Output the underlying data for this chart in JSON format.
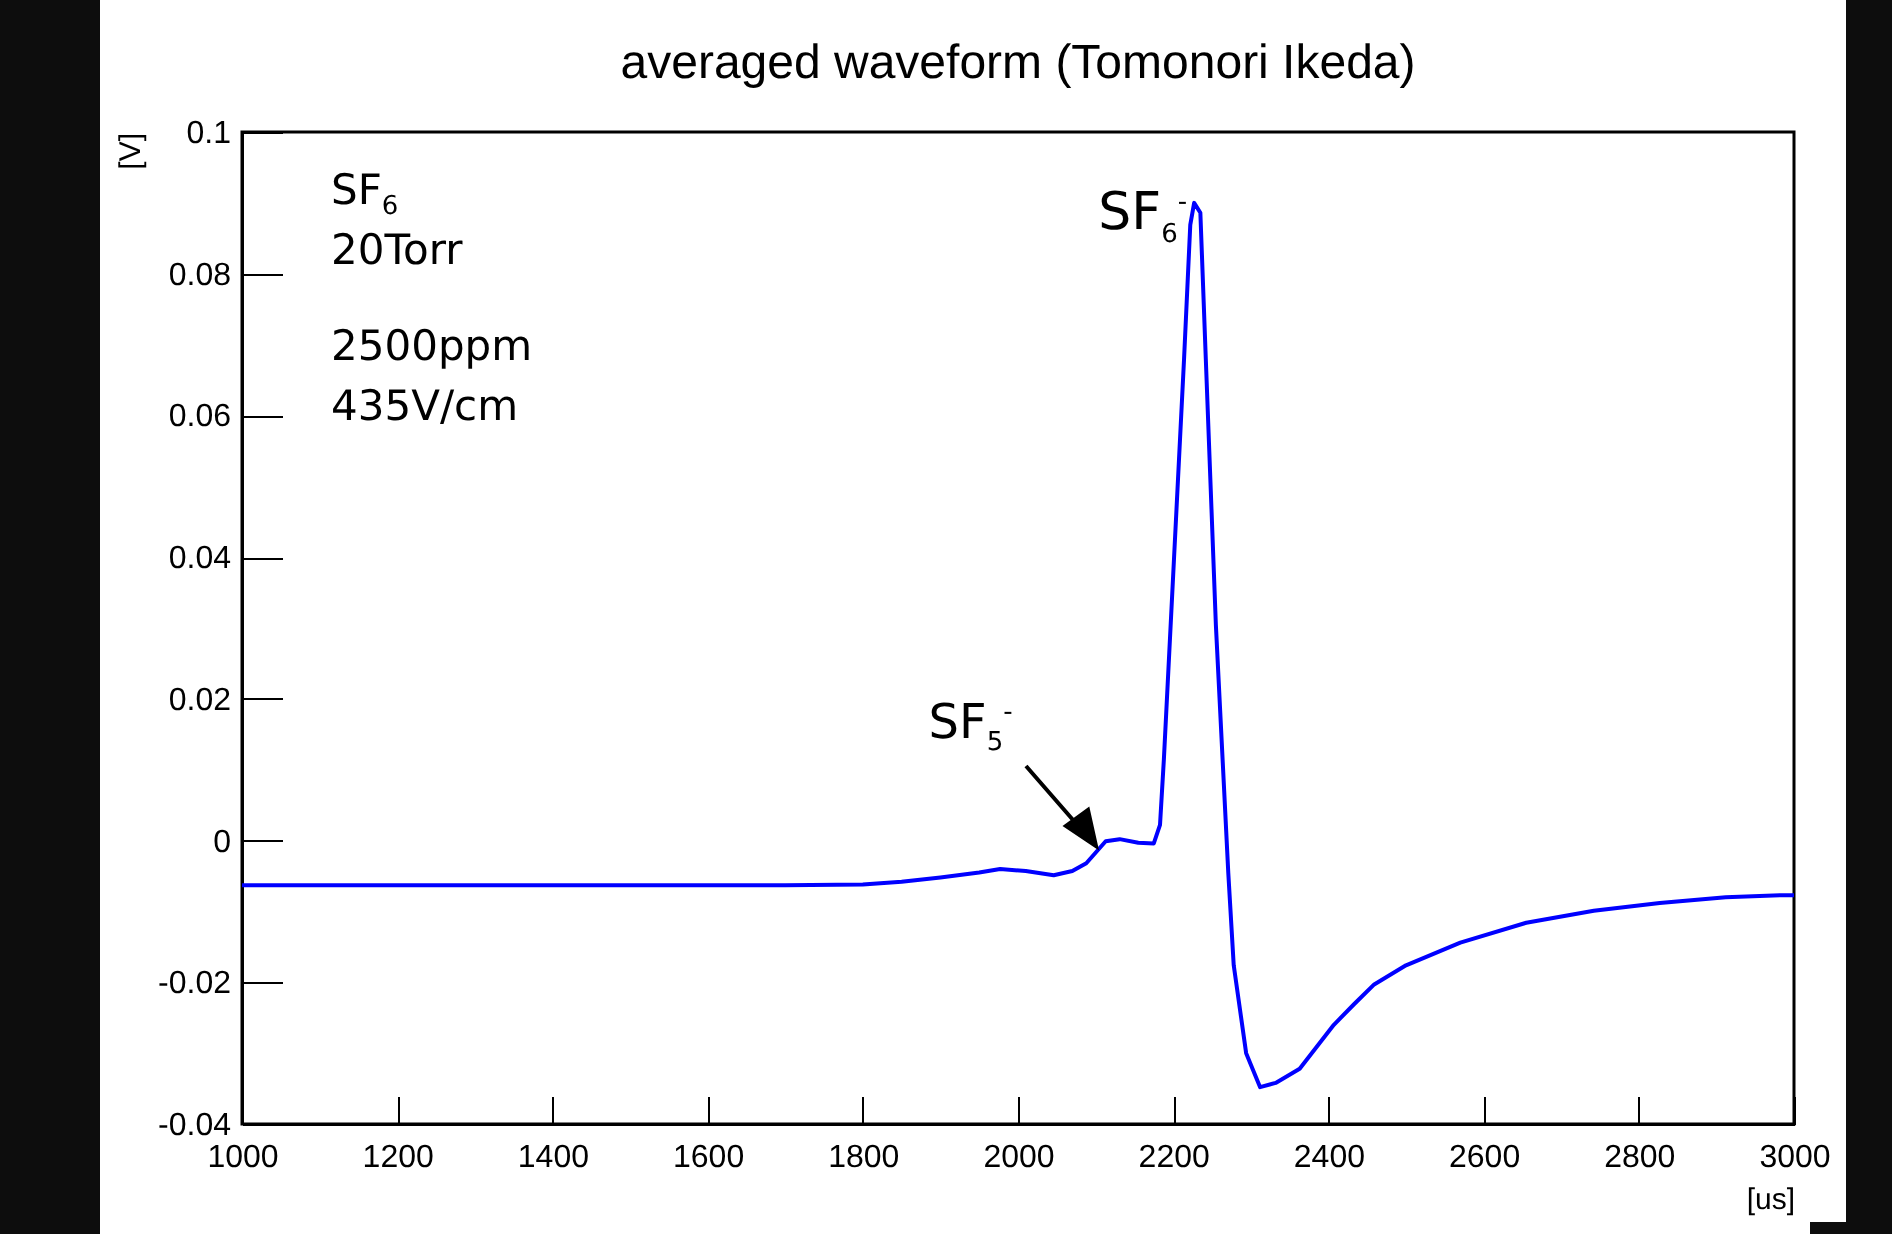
{
  "chart_data": {
    "type": "line",
    "title": "averaged waveform (Tomonori Ikeda)",
    "xlabel": "[us]",
    "ylabel": "[V]",
    "x": [
      1000,
      1200,
      1400,
      1600,
      1700,
      1800,
      1850,
      1900,
      1950,
      1977,
      2010,
      2046,
      2070,
      2088,
      2113,
      2131,
      2155,
      2175,
      2183,
      2188,
      2201,
      2214,
      2222,
      2227,
      2235,
      2242,
      2255,
      2271,
      2278,
      2294,
      2312,
      2332,
      2363,
      2407,
      2433,
      2459,
      2500,
      2570,
      2655,
      2742,
      2827,
      2912,
      2982,
      3000
    ],
    "series": [
      {
        "color": "#0000ff",
        "values": [
          -0.0063,
          -0.0063,
          -0.0063,
          -0.0063,
          -0.0063,
          -0.0062,
          -0.0058,
          -0.0052,
          -0.0045,
          -0.004,
          -0.0043,
          -0.0049,
          -0.0043,
          -0.0032,
          -0.0001,
          0.0002,
          -0.0003,
          -0.0004,
          0.0022,
          0.0115,
          0.0397,
          0.068,
          0.0869,
          0.09,
          0.0886,
          0.068,
          0.0304,
          -0.0046,
          -0.0176,
          -0.03,
          -0.0348,
          -0.0342,
          -0.0322,
          -0.026,
          -0.0231,
          -0.0203,
          -0.0176,
          -0.0144,
          -0.0116,
          -0.0099,
          -0.0088,
          -0.008,
          -0.0077,
          -0.0077
        ]
      }
    ],
    "xlim": [
      1000,
      3000
    ],
    "xticks": [
      1000,
      1200,
      1400,
      1600,
      1800,
      2000,
      2200,
      2400,
      2600,
      2800,
      3000
    ],
    "ylim": [
      -0.04,
      0.1
    ],
    "yticks": [
      -0.04,
      -0.02,
      0,
      0.02,
      0.04,
      0.06,
      0.08,
      0.1
    ],
    "grid": false,
    "marker": "none",
    "line_style": "solid",
    "annotations": [
      "SF$_{6}$",
      "20Torr",
      "2500ppm",
      "435V/cm",
      {
        "text": "SF$_{6}$$^{-}$",
        "x": 2227,
        "y": 0.09
      },
      {
        "text": "SF$_{5}$$^{-}$",
        "x": 2100,
        "y": -0.0017
      }
    ]
  }
}
